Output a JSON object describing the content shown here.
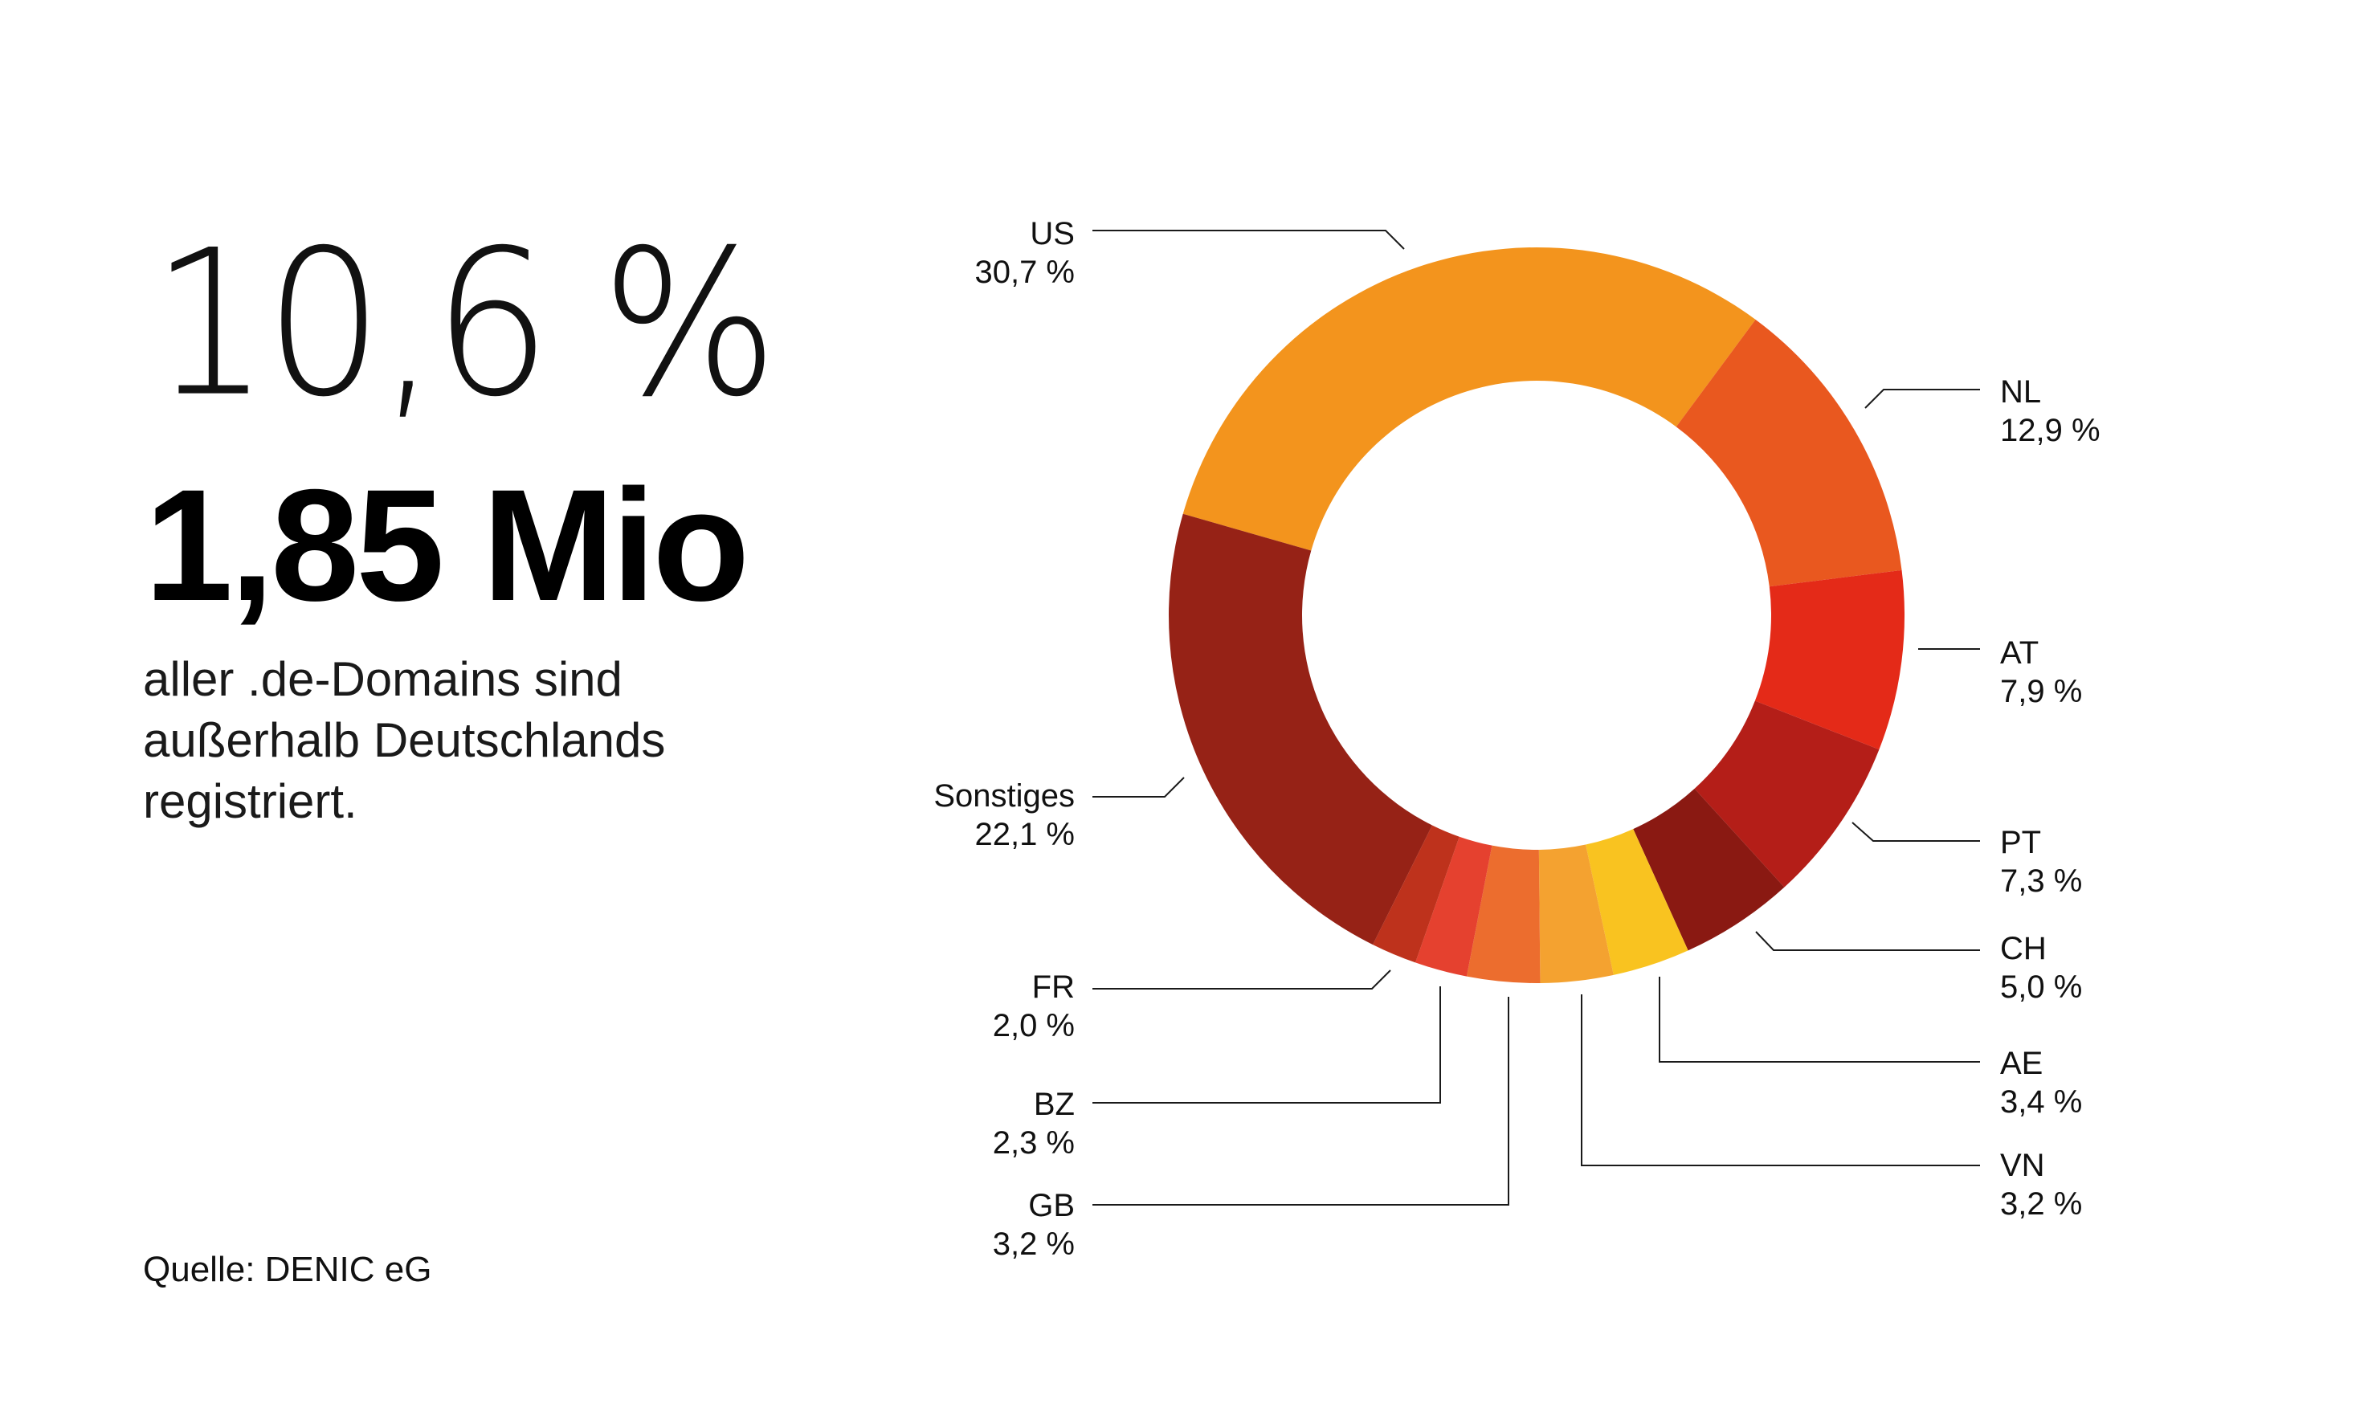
{
  "headline": {
    "percent": "10,6 %",
    "count": "1,85 Mio",
    "description_lines": [
      "aller .de-Domains sind",
      "außerhalb Deutschlands",
      "registriert."
    ]
  },
  "source": "Quelle: DENIC eG",
  "chart_data": {
    "type": "pie",
    "title": "",
    "unit": "%",
    "direction": "clockwise-from-top-left",
    "segments": [
      {
        "label": "US",
        "value": 30.7,
        "display": "30,7 %",
        "color": "#F3941D"
      },
      {
        "label": "NL",
        "value": 12.9,
        "display": "12,9 %",
        "color": "#E9581F"
      },
      {
        "label": "AT",
        "value": 7.9,
        "display": "7,9 %",
        "color": "#E42A18"
      },
      {
        "label": "PT",
        "value": 7.3,
        "display": "7,3 %",
        "color": "#B41E18"
      },
      {
        "label": "CH",
        "value": 5.0,
        "display": "5,0 %",
        "color": "#8A1912"
      },
      {
        "label": "AE",
        "value": 3.4,
        "display": "3,4 %",
        "color": "#F9C320"
      },
      {
        "label": "VN",
        "value": 3.2,
        "display": "3,2 %",
        "color": "#F4A230"
      },
      {
        "label": "GB",
        "value": 3.2,
        "display": "3,2 %",
        "color": "#EC6D2E"
      },
      {
        "label": "BZ",
        "value": 2.3,
        "display": "2,3 %",
        "color": "#E5412F"
      },
      {
        "label": "FR",
        "value": 2.0,
        "display": "2,0 %",
        "color": "#BE321C"
      },
      {
        "label": "Sonstiges",
        "value": 22.1,
        "display": "22,1 %",
        "color": "#962216"
      }
    ]
  }
}
